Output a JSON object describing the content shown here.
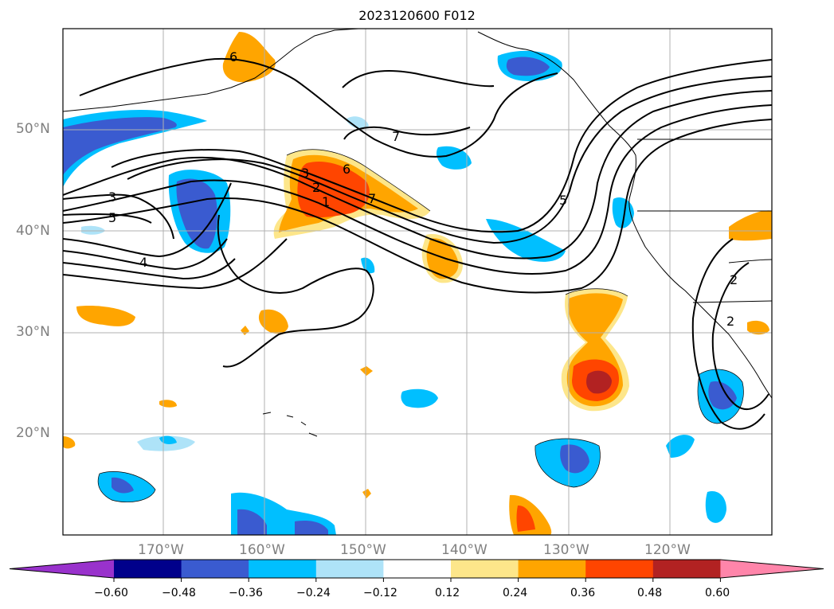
{
  "title": "2023120600 F012",
  "lat_labels": [
    "50°N",
    "40°N",
    "30°N",
    "20°N"
  ],
  "lon_labels": [
    "170°W",
    "160°W",
    "150°W",
    "140°W",
    "130°W",
    "120°W"
  ],
  "contour_labels": [
    "6",
    "7",
    "3",
    "6",
    "2",
    "1",
    "7",
    "3",
    "5",
    "4",
    "5",
    "2",
    "2"
  ],
  "colorbar": {
    "ticks": [
      "−0.60",
      "−0.48",
      "−0.36",
      "−0.24",
      "−0.12",
      "0.12",
      "0.24",
      "0.36",
      "0.48",
      "0.60"
    ],
    "colors": [
      "#9932cc",
      "#00008b",
      "#3a5bd0",
      "#00bfff",
      "#aee3f8",
      "#ffffff",
      "#fde68a",
      "#ffa500",
      "#ff4500",
      "#b22222",
      "#ff85aa"
    ]
  }
}
